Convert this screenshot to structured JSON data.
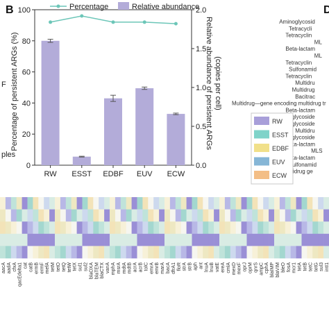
{
  "panel_labels": {
    "b": "B",
    "d": "D"
  },
  "left_cut_text": {
    "top": "F",
    "bottom": "ples"
  },
  "chart_data": {
    "type": "bar",
    "categories": [
      "RW",
      "ESST",
      "EDBF",
      "EUV",
      "ECW"
    ],
    "ylabel": "Percentage of persistent ARGs (%)",
    "y2label_line1": "Relative abundance of persistent ARGs",
    "y2label_line2": "(copies per cell)",
    "ylim": [
      0,
      100
    ],
    "y2lim": [
      0,
      2.0
    ],
    "yticks": [
      "0",
      "20",
      "40",
      "60",
      "80",
      "100"
    ],
    "y2ticks": [
      "0.0",
      "0.5",
      "1.0",
      "1.5",
      "2.0"
    ],
    "series": [
      {
        "name": "Relative abundance",
        "values": [
          1.6,
          0.11,
          0.86,
          0.99,
          0.66
        ],
        "errors": [
          0.02,
          0.005,
          0.04,
          0.015,
          0.01
        ],
        "color": "#b3acd9"
      },
      {
        "name": "Percentage",
        "values": [
          92,
          96,
          92,
          92,
          91
        ],
        "color": "#6cc6b8"
      }
    ],
    "legend_position": "top"
  },
  "panel_d": {
    "labels": [
      "Aminoglycosid",
      "Tetracycli",
      "Tetracyclin",
      "ML",
      "Beta-lactam",
      "ML",
      "Tetracyclin",
      "Sulfonamid",
      "Tetracyclin",
      "Multidru",
      "Multidrug",
      "Bacitrac",
      "Multidrug—gene encoding multidrug tr",
      "Beta-lactam",
      "Aminoglycoside",
      "Aminoglycoside",
      "Multidru",
      "Aminoglycoside",
      "Beta-lactam",
      "MLS",
      "Beta-lactam",
      "Sulfonamid",
      "Multidrug ge"
    ],
    "legend": [
      {
        "label": "RW",
        "color": "#a89fd9"
      },
      {
        "label": "ESST",
        "color": "#7fd3c9"
      },
      {
        "label": "EDBF",
        "color": "#f1e08a"
      },
      {
        "label": "EUV",
        "color": "#86b6d6"
      },
      {
        "label": "ECW",
        "color": "#f3be86"
      }
    ]
  },
  "heatmap": {
    "genes": [
      "aacA",
      "aadA",
      "cfxA",
      "qacEdelta1",
      "cat",
      "catB",
      "ermB",
      "ermF",
      "mefA",
      "tetM",
      "tetO",
      "tetQ",
      "tetW",
      "tetX",
      "sul1",
      "sul2",
      "blaOXA",
      "blaTEM",
      "blaCTX",
      "vanA",
      "mphA",
      "msrA",
      "mdtA",
      "mdtB",
      "acrA",
      "acrB",
      "tolC",
      "emrA",
      "emrB",
      "marA",
      "bacA",
      "dfrA1",
      "floR",
      "strA",
      "strB",
      "aph",
      "ant",
      "lnuA",
      "lnuB",
      "vatE",
      "ereA",
      "cmlA",
      "mexD",
      "mexF",
      "oprJ",
      "oprM",
      "qnrS",
      "ampC",
      "cphA",
      "blaIMP",
      "blaVIM",
      "bleO",
      "fosA",
      "mcr1",
      "tetA",
      "tetB",
      "tetC",
      "tetG",
      "sul3",
      "intI1"
    ]
  }
}
